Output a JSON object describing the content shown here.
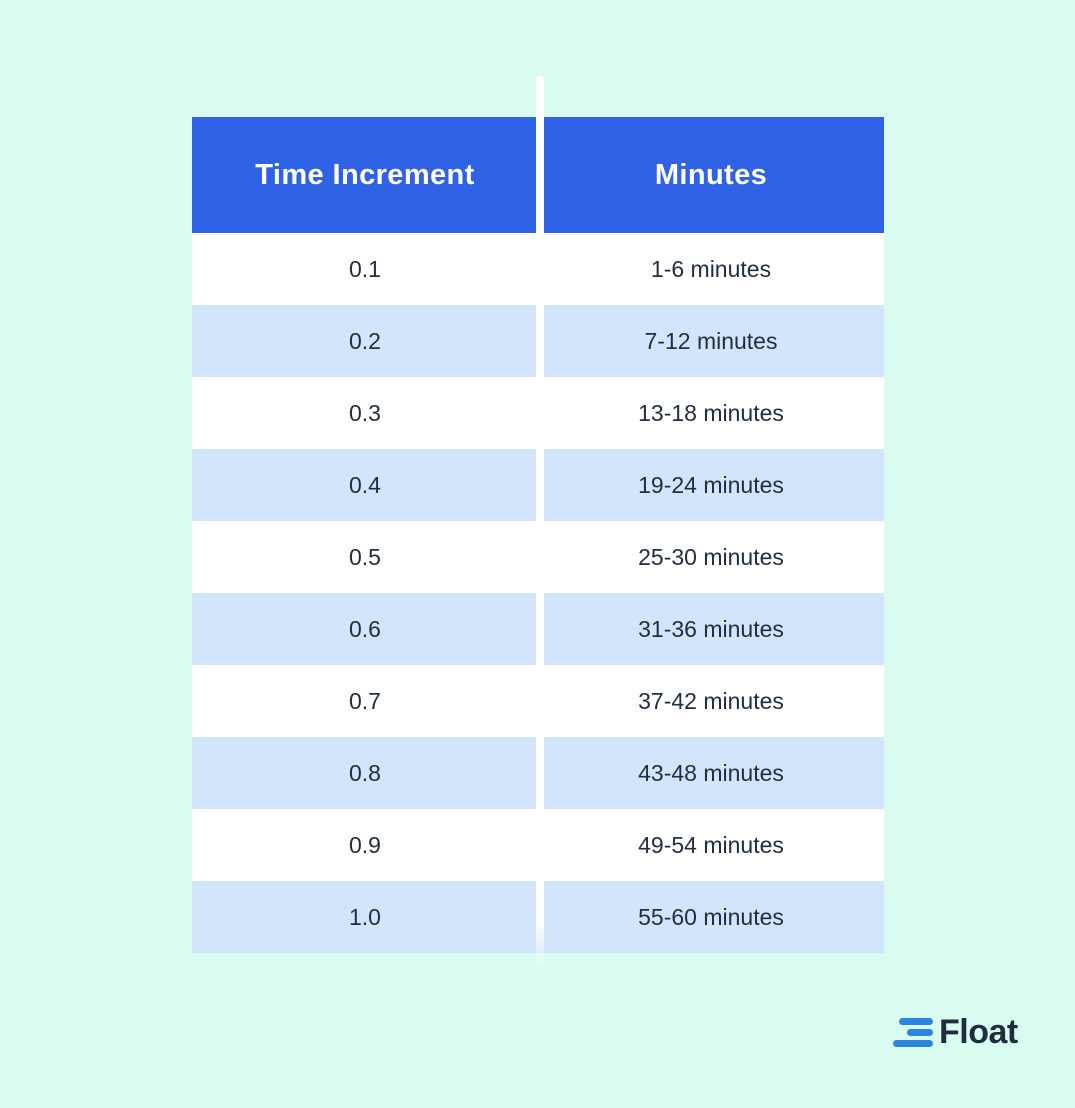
{
  "colors": {
    "page_bg": "#d9fbf0",
    "header_bg": "#2f62e5",
    "header_text": "#ffffff",
    "row_bg": "#ffffff",
    "row_alt_bg": "#d3e5fb",
    "cell_text": "#222f3e",
    "divider": "#ffffff",
    "logo_bar_color": "#2d84dd",
    "logo_text_color": "#1f2d3c"
  },
  "chart_data": {
    "type": "table",
    "title": "",
    "columns": [
      "Time Increment",
      "Minutes"
    ],
    "rows": [
      [
        "0.1",
        "1-6 minutes"
      ],
      [
        "0.2",
        "7-12 minutes"
      ],
      [
        "0.3",
        "13-18 minutes"
      ],
      [
        "0.4",
        "19-24 minutes"
      ],
      [
        "0.5",
        "25-30 minutes"
      ],
      [
        "0.6",
        "31-36 minutes"
      ],
      [
        "0.7",
        "37-42 minutes"
      ],
      [
        "0.8",
        "43-48 minutes"
      ],
      [
        "0.9",
        "49-54 minutes"
      ],
      [
        "1.0",
        "55-60 minutes"
      ]
    ],
    "layout_hints": {
      "header_style": "solid blue band, white bold text",
      "row_striping": "white / light blue alternating starting with white",
      "column_divider": "white vertical line extending above and below table"
    }
  },
  "logo": {
    "text": "Float"
  }
}
